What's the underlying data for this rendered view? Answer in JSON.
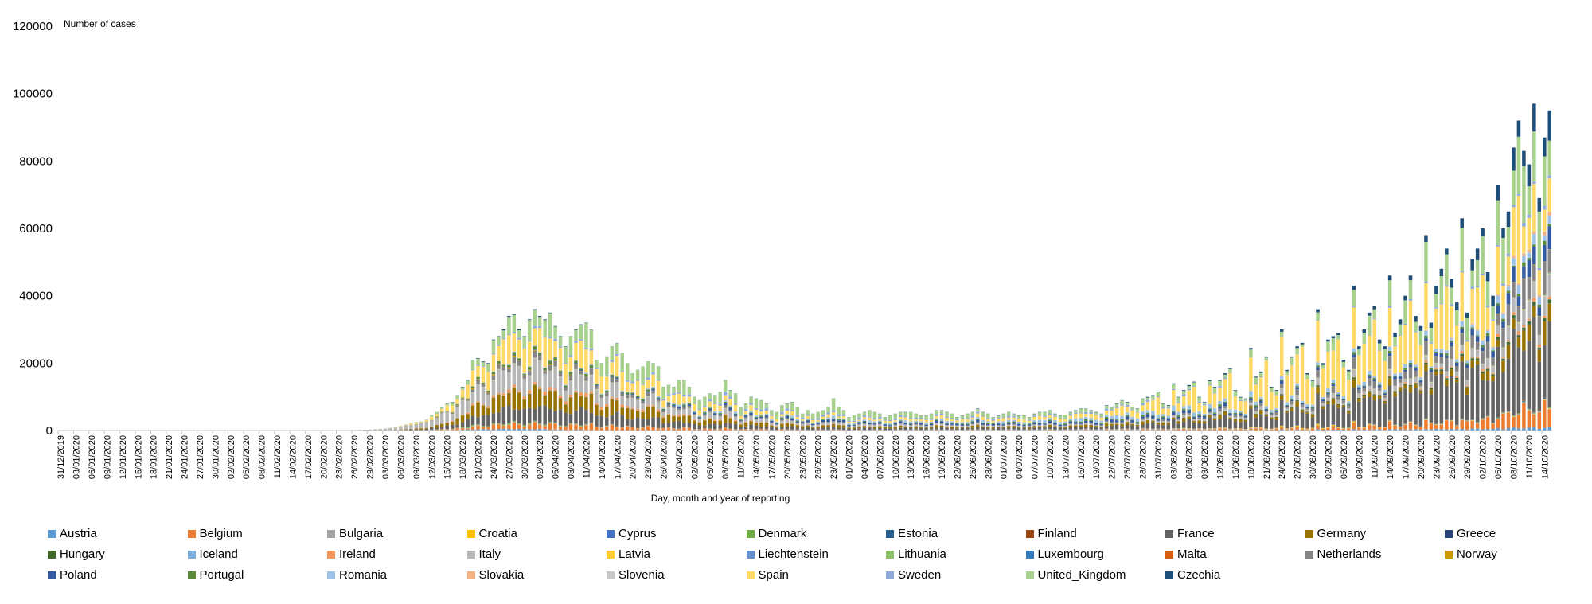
{
  "chart_data": {
    "type": "bar",
    "stacked": true,
    "ylabel": "Number of cases",
    "xlabel": "Day, month and year of reporting",
    "ylim": [
      0,
      120000
    ],
    "yticks": [
      "0",
      "20000",
      "40000",
      "60000",
      "80000",
      "100000",
      "120000"
    ],
    "grid": false,
    "legend_position": "bottom",
    "date_range": [
      "31/12/2019",
      "15/10/2020"
    ],
    "tick_labels": [
      "31/12/2019",
      "03/01/2020",
      "06/01/2020",
      "09/01/2020",
      "12/01/2020",
      "15/01/2020",
      "18/01/2020",
      "21/01/2020",
      "24/01/2020",
      "27/01/2020",
      "30/01/2020",
      "02/02/2020",
      "05/02/2020",
      "08/02/2020",
      "11/02/2020",
      "14/02/2020",
      "17/02/2020",
      "20/02/2020",
      "23/02/2020",
      "26/02/2020",
      "29/02/2020",
      "03/03/2020",
      "06/03/2020",
      "09/03/2020",
      "12/03/2020",
      "15/03/2020",
      "18/03/2020",
      "21/03/2020",
      "24/03/2020",
      "27/03/2020",
      "30/03/2020",
      "02/04/2020",
      "05/04/2020",
      "08/04/2020",
      "11/04/2020",
      "14/04/2020",
      "17/04/2020",
      "20/04/2020",
      "23/04/2020",
      "26/04/2020",
      "29/04/2020",
      "02/05/2020",
      "05/05/2020",
      "08/05/2020",
      "11/05/2020",
      "14/05/2020",
      "17/05/2020",
      "20/05/2020",
      "23/05/2020",
      "26/05/2020",
      "29/05/2020",
      "01/06/2020",
      "04/06/2020",
      "07/06/2020",
      "10/06/2020",
      "13/06/2020",
      "16/06/2020",
      "19/06/2020",
      "22/06/2020",
      "25/06/2020",
      "28/06/2020",
      "01/07/2020",
      "04/07/2020",
      "07/07/2020",
      "10/07/2020",
      "13/07/2020",
      "16/07/2020",
      "19/07/2020",
      "22/07/2020",
      "25/07/2020",
      "28/07/2020",
      "31/07/2020",
      "03/08/2020",
      "06/08/2020",
      "09/08/2020",
      "12/08/2020",
      "15/08/2020",
      "18/08/2020",
      "21/08/2020",
      "24/08/2020",
      "27/08/2020",
      "30/08/2020",
      "02/09/2020",
      "05/09/2020",
      "08/09/2020",
      "11/09/2020",
      "14/09/2020",
      "17/09/2020",
      "20/09/2020",
      "23/09/2020",
      "26/09/2020",
      "29/09/2020",
      "02/10/2020",
      "05/10/2020",
      "08/10/2020",
      "11/10/2020",
      "14/10/2020"
    ],
    "daily_totals": [
      0,
      0,
      0,
      0,
      0,
      0,
      0,
      0,
      0,
      0,
      0,
      0,
      0,
      0,
      0,
      0,
      0,
      0,
      0,
      0,
      0,
      0,
      0,
      0,
      0,
      0,
      0,
      0,
      0,
      0,
      0,
      0,
      0,
      0,
      0,
      0,
      0,
      0,
      0,
      0,
      0,
      0,
      0,
      0,
      0,
      0,
      0,
      0,
      0,
      0,
      0,
      0,
      20,
      60,
      80,
      70,
      100,
      140,
      200,
      250,
      300,
      400,
      500,
      600,
      800,
      1100,
      1400,
      1800,
      2200,
      2500,
      2700,
      3200,
      4500,
      5500,
      6800,
      8000,
      8500,
      10500,
      13000,
      15000,
      21000,
      21500,
      20500,
      20000,
      27000,
      28000,
      30000,
      34000,
      34500,
      30000,
      28000,
      33000,
      36000,
      34000,
      33000,
      35000,
      31000,
      28000,
      25000,
      28000,
      30000,
      31500,
      32000,
      30000,
      21000,
      20000,
      22000,
      25000,
      26000,
      23000,
      20000,
      17000,
      18000,
      19000,
      20500,
      20000,
      19000,
      13000,
      13500,
      13000,
      15000,
      15000,
      13000,
      10000,
      9000,
      10000,
      11000,
      10500,
      11500,
      15000,
      12000,
      11000,
      7000,
      8000,
      10000,
      9500,
      9000,
      8000,
      6000,
      5500,
      7500,
      8000,
      8500,
      7000,
      5000,
      6000,
      5000,
      5500,
      6000,
      7000,
      9500,
      7000,
      6000,
      4000,
      4500,
      5000,
      5500,
      6000,
      5500,
      5000,
      4000,
      4500,
      5000,
      5500,
      5500,
      5500,
      5000,
      4500,
      4500,
      5000,
      6000,
      6000,
      5500,
      5000,
      4000,
      4500,
      5000,
      5500,
      6500,
      5500,
      5000,
      4000,
      4500,
      5000,
      5500,
      5000,
      4500,
      4500,
      4000,
      5000,
      5500,
      5500,
      6000,
      5000,
      4500,
      4500,
      5500,
      6000,
      6500,
      6500,
      6000,
      5500,
      5000,
      7500,
      7000,
      8000,
      9000,
      8500,
      7000,
      6500,
      9500,
      10000,
      10500,
      11500,
      8000,
      7500,
      14000,
      10000,
      12000,
      13500,
      14500,
      10000,
      8500,
      15000,
      13000,
      15000,
      17000,
      18500,
      12000,
      10000,
      9500,
      24500,
      16000,
      17500,
      22000,
      13000,
      12000,
      30000,
      18000,
      22000,
      25000,
      26000,
      17000,
      15000,
      36000,
      20000,
      27000,
      28000,
      29000,
      21000,
      18000,
      43000,
      25000,
      30000,
      35000,
      37000,
      27000,
      25000,
      46000,
      29000,
      33000,
      40000,
      46000,
      34000,
      31000,
      58000,
      32000,
      43000,
      48000,
      54000,
      45000,
      38000,
      63000,
      35000,
      51000,
      54000,
      60000,
      47000,
      40000,
      73000,
      60000,
      65000,
      84000,
      92000,
      83000,
      79000,
      97000,
      69000,
      87000,
      95000
    ],
    "series": [
      {
        "name": "Austria",
        "color": "#5B9BD5"
      },
      {
        "name": "Belgium",
        "color": "#ED7D31"
      },
      {
        "name": "Bulgaria",
        "color": "#A5A5A5"
      },
      {
        "name": "Croatia",
        "color": "#FFC000"
      },
      {
        "name": "Cyprus",
        "color": "#4472C4"
      },
      {
        "name": "Denmark",
        "color": "#70AD47"
      },
      {
        "name": "Estonia",
        "color": "#255E91"
      },
      {
        "name": "Finland",
        "color": "#9E480E"
      },
      {
        "name": "France",
        "color": "#636363"
      },
      {
        "name": "Germany",
        "color": "#997300"
      },
      {
        "name": "Greece",
        "color": "#264478"
      },
      {
        "name": "Hungary",
        "color": "#43682B"
      },
      {
        "name": "Iceland",
        "color": "#7CAFDD"
      },
      {
        "name": "Ireland",
        "color": "#F1975A"
      },
      {
        "name": "Italy",
        "color": "#B7B7B7"
      },
      {
        "name": "Latvia",
        "color": "#FFCD33"
      },
      {
        "name": "Liechtenstein",
        "color": "#698ED0"
      },
      {
        "name": "Lithuania",
        "color": "#8CC168"
      },
      {
        "name": "Luxembourg",
        "color": "#327DC2"
      },
      {
        "name": "Malta",
        "color": "#D26012"
      },
      {
        "name": "Netherlands",
        "color": "#848484"
      },
      {
        "name": "Norway",
        "color": "#CC9A00"
      },
      {
        "name": "Poland",
        "color": "#335AA1"
      },
      {
        "name": "Portugal",
        "color": "#5A8A39"
      },
      {
        "name": "Romania",
        "color": "#9DC3E6"
      },
      {
        "name": "Slovakia",
        "color": "#F4B183"
      },
      {
        "name": "Slovenia",
        "color": "#C9C9C9"
      },
      {
        "name": "Spain",
        "color": "#FFD966"
      },
      {
        "name": "Sweden",
        "color": "#8FAADC"
      },
      {
        "name": "United_Kingdom",
        "color": "#A9D18E"
      },
      {
        "name": "Czechia",
        "color": "#1F4E79"
      }
    ]
  }
}
